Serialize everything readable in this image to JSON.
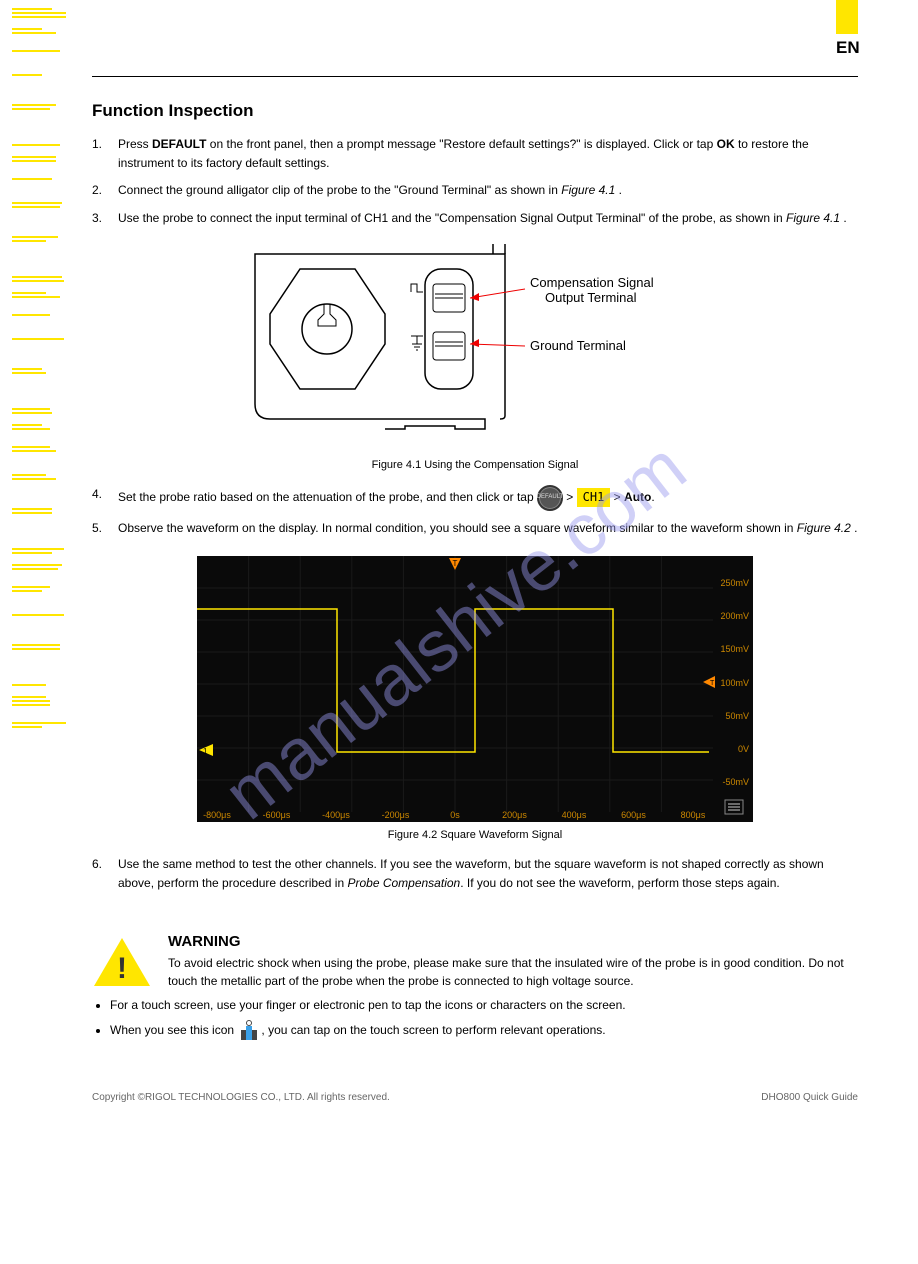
{
  "header": {
    "lang": "EN"
  },
  "sidebar": {
    "groups": [
      3,
      2,
      1,
      1,
      2,
      1,
      2,
      1,
      2,
      2,
      2,
      2,
      1,
      1,
      2,
      2,
      2,
      2,
      2,
      2,
      2,
      2,
      2,
      1,
      2,
      1,
      3,
      2
    ]
  },
  "section_title": "Function Inspection",
  "steps": [
    "Press DEFAULT on the front panel, then a prompt message \"Restore default settings?\" is displayed. Click or tap OK to restore the instrument to its factory default settings.",
    "Connect the ground alligator clip of the probe to the \"Ground Terminal\" as shown in Figure 4.1 .",
    "Use the probe to connect the input terminal of CH1 and the \"Compensation Signal Output Terminal\" of the probe, as shown in Figure 4.1 .",
    "Set the probe ratio based on the attenuation of the probe, and then click or tap > Auto.",
    "Observe the waveform on the display. In normal condition, you should see a square waveform similar to the waveform shown in Figure 4.2 ."
  ],
  "step4_parts": {
    "pre": "Set the probe ratio based on the attenuation of the probe, and then click or tap",
    "icon_alt": "CH1",
    "mid": " > ",
    "bold": "Auto",
    "post": "."
  },
  "diagram1": {
    "caption": "Figure 4.1 Using the Compensation Signal",
    "labels": {
      "comp": "Compensation Signal",
      "comp2": "Output Terminal",
      "gnd": "Ground Terminal"
    }
  },
  "scope": {
    "caption": "Figure 4.2 Square Waveform Signal",
    "xlabels": [
      "-800μs",
      "-600μs",
      "-400μs",
      "-200μs",
      "0s",
      "200μs",
      "400μs",
      "600μs",
      "800μs"
    ],
    "ylabels": [
      "250mV",
      "200mV",
      "150mV",
      "100mV",
      "50mV",
      "0V",
      "-50mV"
    ],
    "trace_color": "#ffe600",
    "bg_color": "#0a0a0a",
    "grid_color": "#1a1a1a",
    "text_color": "#cc8800",
    "trigger_color": "#ff8800"
  },
  "warning": {
    "title": "WARNING",
    "text": "To avoid electric shock when using the probe, please make sure that the insulated wire of the probe is in good condition. Do not touch the metallic part of the probe when the probe is connected to high voltage source."
  },
  "bullets": [
    {
      "pre": "For a touch screen, use your finger or electronic pen to tap the icons or characters on the screen.",
      "touch_icon": false
    },
    {
      "pre": "When you see this icon ",
      "touch_icon": true,
      "post": ", you can tap on the touch screen to perform relevant operations."
    }
  ],
  "footer": {
    "left": "Copyright ©RIGOL TECHNOLOGIES CO., LTD. All rights reserved.",
    "right": "DHO800 Quick Guide"
  }
}
